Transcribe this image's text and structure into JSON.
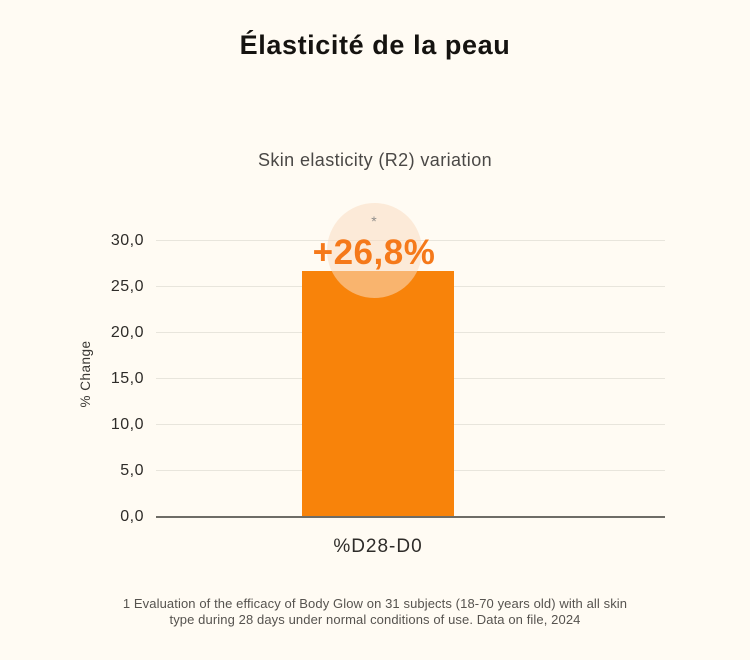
{
  "page": {
    "background": "#FFFBF3"
  },
  "header": {
    "title": "Élasticité de la peau",
    "title_color": "#151310"
  },
  "chart_data": {
    "type": "bar",
    "title": "Skin elasticity (R2) variation",
    "subtitle_color": "#4A4846",
    "categories": [
      "%D28-D0"
    ],
    "values": [
      26.8
    ],
    "bar_label": "+26,8%",
    "annotation": "*",
    "xlabel": "",
    "ylabel": "% Change",
    "ylim": [
      0,
      33.5
    ],
    "yticks": [
      "0,0",
      "5,0",
      "10,0",
      "15,0",
      "20,0",
      "25,0",
      "30,0"
    ],
    "ytick_values": [
      0,
      5,
      10,
      15,
      20,
      25,
      30
    ],
    "grid": true,
    "legend": false,
    "bar_color": "#F8830A",
    "label_color": "#F5791A",
    "annotation_color": "#8F8D8A",
    "highlight_circle_color": "rgba(250,220,193,0.55)",
    "gridline_color": "#E8E5DC",
    "axis_line_color": "#6E6C66",
    "tick_color": "#2E2C29",
    "ylabel_color": "#3A3834",
    "category_color": "#2E2C29"
  },
  "footnote": {
    "line1": "1 Evaluation of the efficacy of Body Glow on 31 subjects (18-70 years old) with all skin",
    "line2": "type during 28 days under normal conditions of use. Data on file, 2024",
    "color": "#56534F"
  }
}
